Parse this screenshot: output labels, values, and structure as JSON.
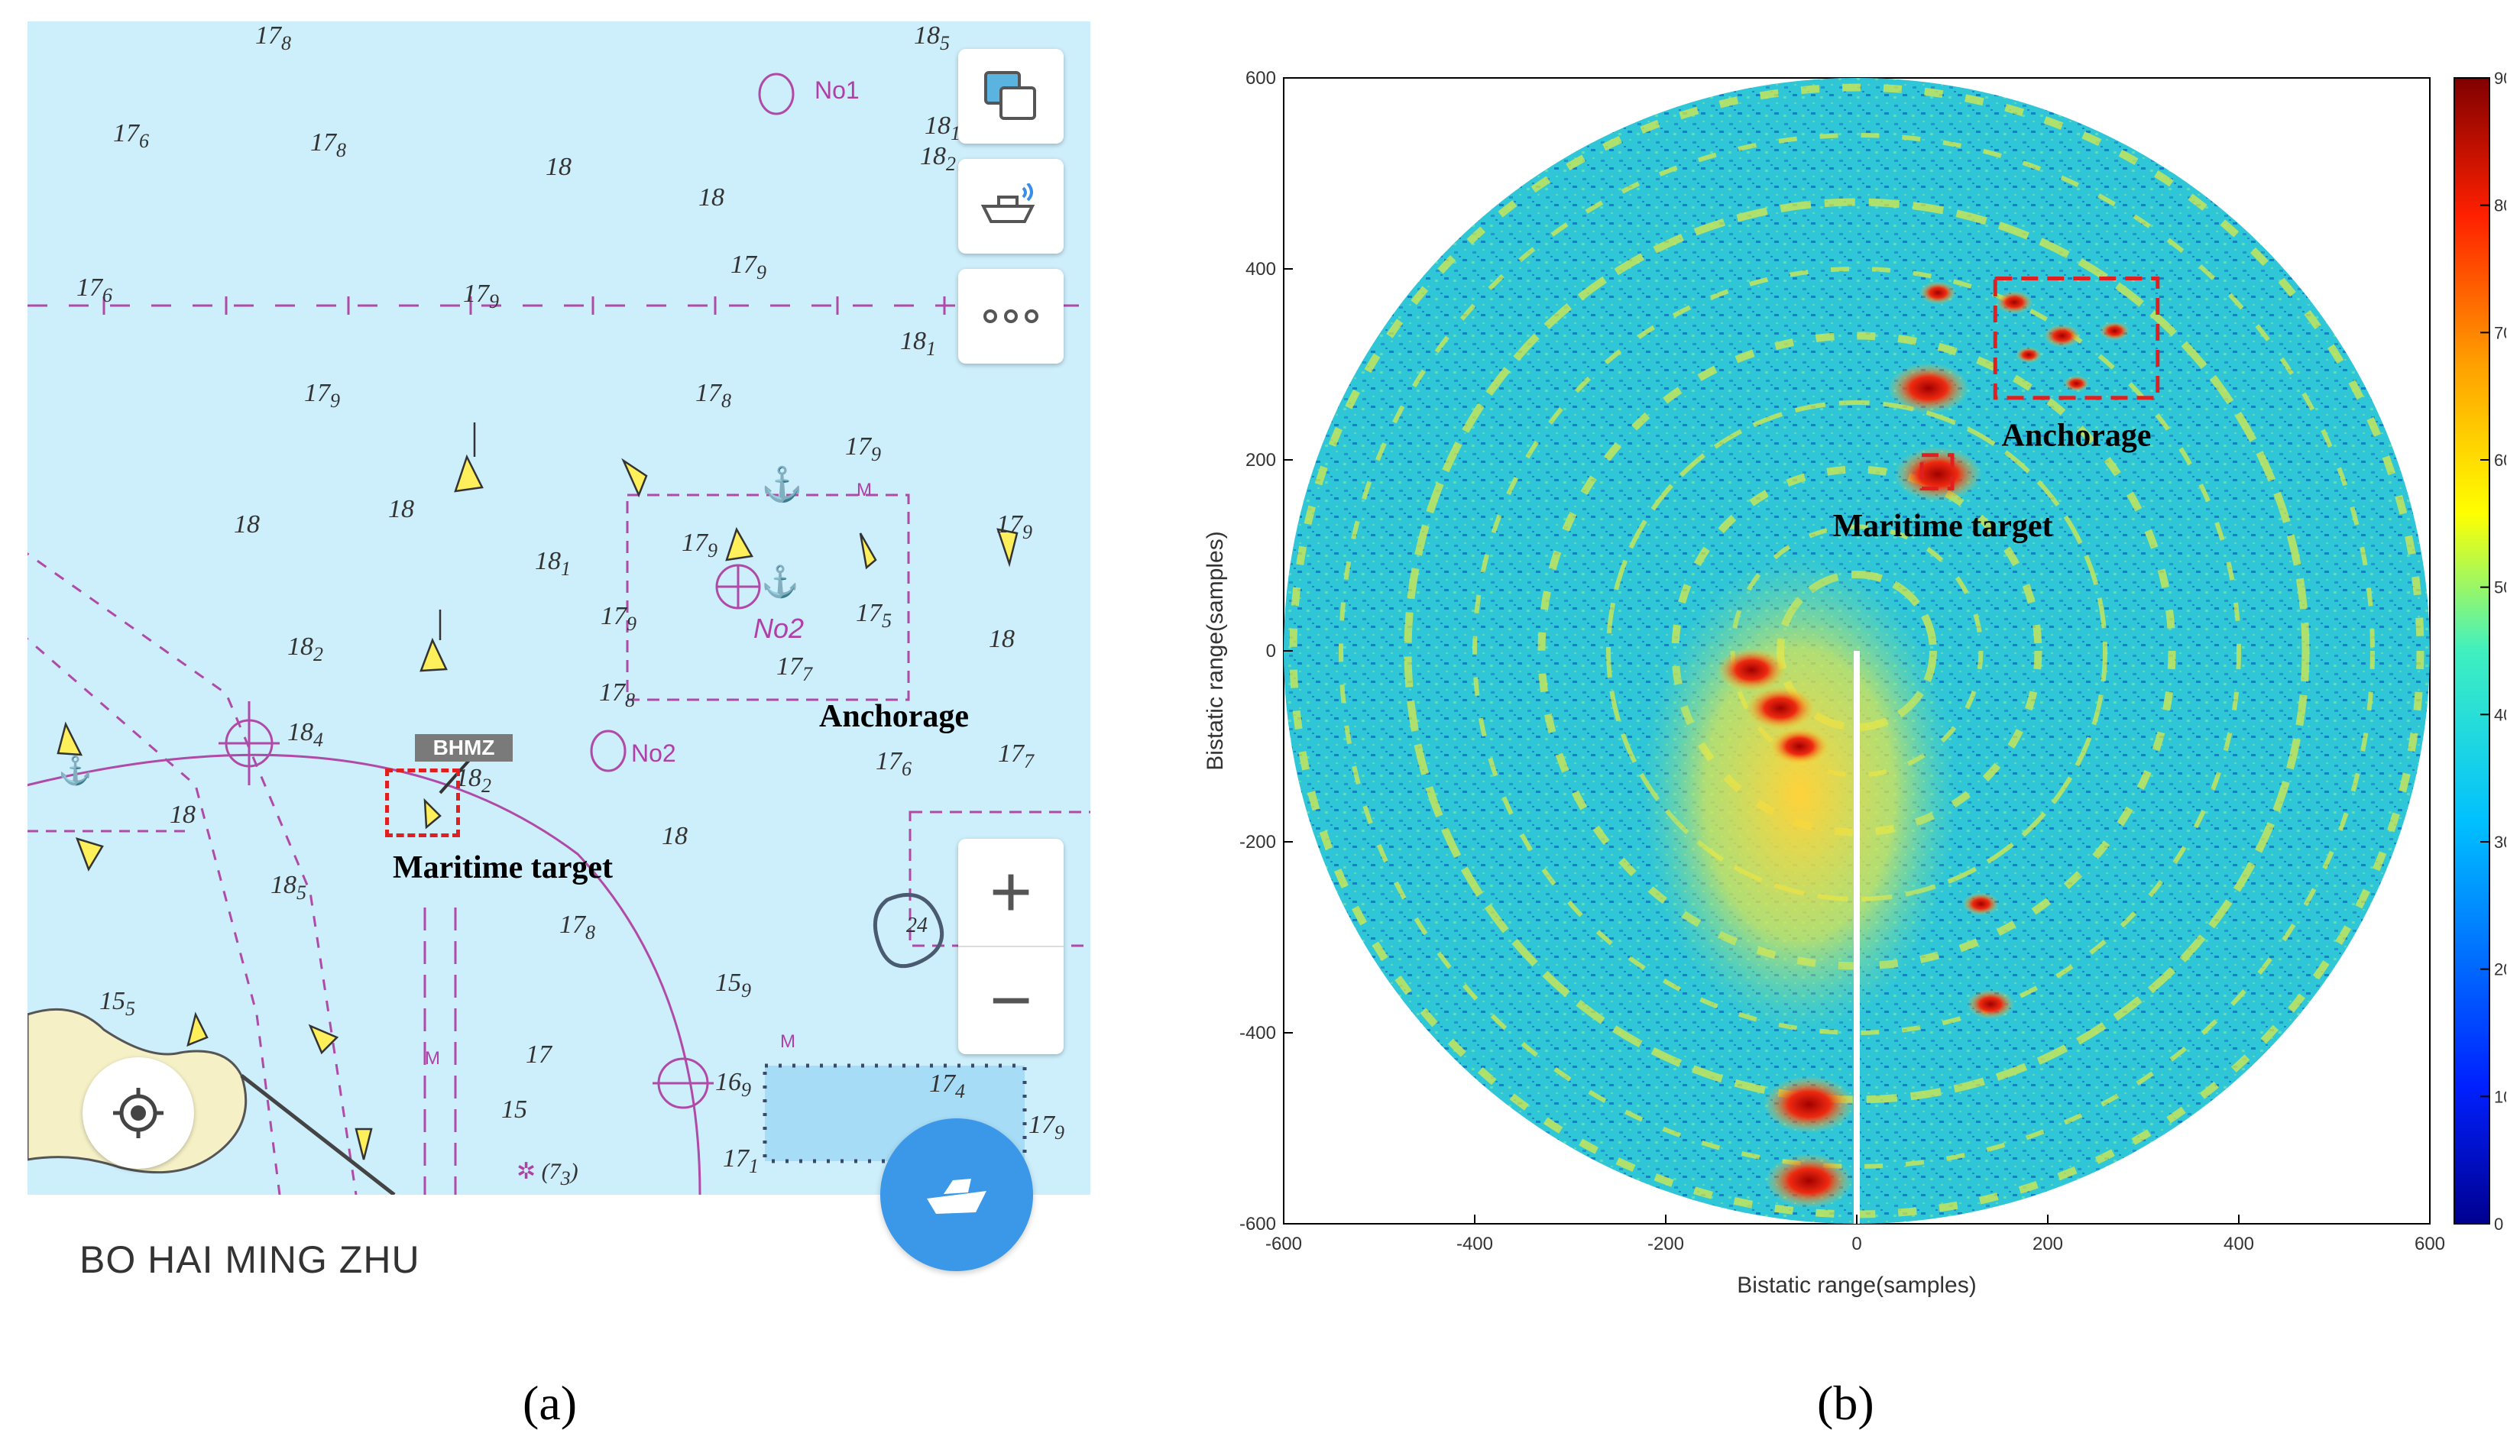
{
  "panel_a": {
    "label": "(a)",
    "vessel_name": "BO HAI MING ZHU",
    "callsign": "BHMZ",
    "annotation_anchorage": "Anchorage",
    "annotation_target": "Maritime target",
    "anchorage_label_1": "No1",
    "anchorage_label_2": "No2",
    "anchorage_label_2b": "No2",
    "map_buttons": [
      "layers-icon",
      "ship-signal-icon",
      "more-icon"
    ],
    "zoom_in": "+",
    "zoom_out": "−",
    "depth_soundings": [
      {
        "main": "17",
        "sub": "8"
      },
      {
        "main": "18",
        "sub": "5"
      },
      {
        "main": "17",
        "sub": "6"
      },
      {
        "main": "17",
        "sub": "8"
      },
      {
        "main": "18",
        "sub": ""
      },
      {
        "main": "18",
        "sub": ""
      },
      {
        "main": "18",
        "sub": "2"
      },
      {
        "main": "18",
        "sub": "1"
      },
      {
        "main": "17",
        "sub": "6"
      },
      {
        "main": "17",
        "sub": "9"
      },
      {
        "main": "17",
        "sub": "9"
      },
      {
        "main": "18",
        "sub": "1"
      },
      {
        "main": "17",
        "sub": "9"
      },
      {
        "main": "17",
        "sub": "8"
      },
      {
        "main": "17",
        "sub": "9"
      },
      {
        "main": "18",
        "sub": ""
      },
      {
        "main": "18",
        "sub": ""
      },
      {
        "main": "18",
        "sub": "1"
      },
      {
        "main": "17",
        "sub": "9"
      },
      {
        "main": "17",
        "sub": "9"
      },
      {
        "main": "17",
        "sub": "9"
      },
      {
        "main": "17",
        "sub": "5"
      },
      {
        "main": "18",
        "sub": ""
      },
      {
        "main": "18",
        "sub": "2"
      },
      {
        "main": "17",
        "sub": "7"
      },
      {
        "main": "17",
        "sub": "8"
      },
      {
        "main": "18",
        "sub": "4"
      },
      {
        "main": "17",
        "sub": "6"
      },
      {
        "main": "17",
        "sub": "7"
      },
      {
        "main": "18",
        "sub": ""
      },
      {
        "main": "18",
        "sub": "2"
      },
      {
        "main": "18",
        "sub": ""
      },
      {
        "main": "18",
        "sub": "5"
      },
      {
        "main": "17",
        "sub": "8"
      },
      {
        "main": "15",
        "sub": "9"
      },
      {
        "main": "15",
        "sub": "5"
      },
      {
        "main": "17",
        "sub": ""
      },
      {
        "main": "15",
        "sub": ""
      },
      {
        "main": "16",
        "sub": "9"
      },
      {
        "main": "17",
        "sub": "4"
      },
      {
        "main": "17",
        "sub": "9"
      },
      {
        "main": "17",
        "sub": "1"
      },
      {
        "main": "24",
        "sub": ""
      }
    ],
    "wreck_label": "(7",
    "wreck_sub": "3",
    "marker_m": "M"
  },
  "panel_b": {
    "label": "(b)",
    "annotation_anchorage": "Anchorage",
    "annotation_target": "Maritime target",
    "colorbar_ticks": [
      "0",
      "10",
      "20",
      "30",
      "40",
      "50",
      "60",
      "70",
      "80",
      "90"
    ],
    "colors": {
      "background": "#2fc6d8",
      "ring": "#d8e84a",
      "hot": "#e02818",
      "box": "#e02020"
    }
  },
  "chart_data": {
    "type": "heatmap",
    "xlabel": "Bistatic range(samples)",
    "ylabel": "Bistatic range(samples)",
    "xlim": [
      -600,
      600
    ],
    "ylim": [
      -600,
      600
    ],
    "x_ticks": [
      "-600",
      "-400",
      "-200",
      "0",
      "200",
      "400",
      "600"
    ],
    "y_ticks": [
      "600",
      "400",
      "200",
      "0",
      "-200",
      "-400",
      "-600"
    ],
    "colorbar_range": [
      0,
      90
    ],
    "grid": false,
    "highlights": [
      {
        "label": "Anchorage",
        "x": [
          145,
          315
        ],
        "y": [
          265,
          390
        ]
      },
      {
        "label": "Maritime target",
        "x": [
          68,
          100
        ],
        "y": [
          170,
          205
        ]
      }
    ],
    "strong_returns": [
      {
        "x": 75,
        "y": 275,
        "v": 85
      },
      {
        "x": 85,
        "y": 185,
        "v": 88
      },
      {
        "x": 85,
        "y": 375,
        "v": 65
      },
      {
        "x": 165,
        "y": 365,
        "v": 65
      },
      {
        "x": 215,
        "y": 330,
        "v": 65
      },
      {
        "x": 270,
        "y": 335,
        "v": 62
      },
      {
        "x": 180,
        "y": 310,
        "v": 60
      },
      {
        "x": 230,
        "y": 280,
        "v": 60
      },
      {
        "x": -50,
        "y": -475,
        "v": 90
      },
      {
        "x": -50,
        "y": -555,
        "v": 88
      },
      {
        "x": -80,
        "y": -60,
        "v": 80
      },
      {
        "x": -110,
        "y": -20,
        "v": 80
      },
      {
        "x": -60,
        "y": -100,
        "v": 75
      },
      {
        "x": 140,
        "y": -370,
        "v": 70
      },
      {
        "x": 130,
        "y": -265,
        "v": 65
      }
    ]
  }
}
